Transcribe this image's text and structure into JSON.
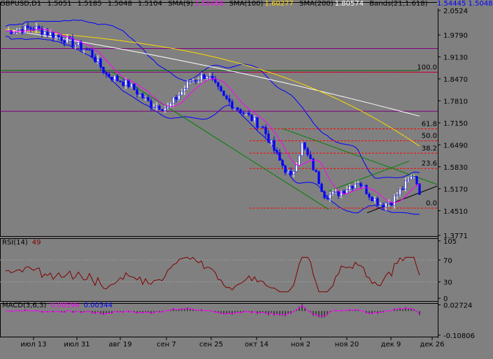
{
  "header": {
    "symbol": "GBPUSD,D1",
    "ohlc": [
      "1.5051",
      "1.5185",
      "1.5048",
      "1.5104"
    ],
    "sma9": {
      "label": "SMA(9)",
      "value": "1.51458"
    },
    "sma100": {
      "label": "SMA(100)",
      "value": "1.60277"
    },
    "sma200": {
      "label": "SMA(200)",
      "value": "1.80574"
    },
    "bands": {
      "label": "Bands(21,1.618)",
      "value1": "1.54445",
      "value2": "1.5048"
    }
  },
  "rsi": {
    "label": "RSI(14)",
    "value": "49",
    "levels": [
      "105",
      "70",
      "30",
      "0"
    ]
  },
  "macd": {
    "label": "MACD(3,6,3)",
    "value1": "0.00596",
    "value2": "0.00344",
    "levels": [
      "0.02724",
      "-0.10806"
    ]
  },
  "price_axis": [
    "2.0524",
    "1.9790",
    "1.9130",
    "1.8470",
    "1.7810",
    "1.7150",
    "1.6490",
    "1.5830",
    "1.5170",
    "1.4510",
    "1.3771"
  ],
  "time_axis": [
    "июл 13",
    "июл 31",
    "авг 19",
    "сен 7",
    "сен 25",
    "окт 14",
    "ноя 2",
    "ноя 20",
    "дек 9",
    "дек 26"
  ],
  "fibo": [
    "100.0",
    "61.8",
    "50.0",
    "38.2",
    "23.6",
    "0.0"
  ],
  "colors": {
    "background": "#808080",
    "bull_candle": "#ffffff",
    "bear_candle": "#0000ff",
    "sma9": "#ff00ff",
    "sma100": "#ffd700",
    "sma200": "#ffffff",
    "bands": "#0000ff",
    "hline": "#800080",
    "fibo": "#ff0000",
    "channel": "#008000"
  },
  "chart_data": {
    "type": "candlestick",
    "title": "GBPUSD,D1",
    "ylim": [
      1.3771,
      2.0524
    ],
    "x": [
      "июл 13",
      "июл 31",
      "авг 19",
      "сен 7",
      "сен 25",
      "окт 14",
      "ноя 2",
      "ноя 20",
      "дек 9",
      "дек 26"
    ],
    "close_series": [
      {
        "date": "июл 13",
        "value": 1.99
      },
      {
        "date": "июл 31",
        "value": 1.98
      },
      {
        "date": "авг 19",
        "value": 1.86
      },
      {
        "date": "сен 7",
        "value": 1.76
      },
      {
        "date": "сен 25",
        "value": 1.84
      },
      {
        "date": "окт 14",
        "value": 1.74
      },
      {
        "date": "ноя 2",
        "value": 1.58
      },
      {
        "date": "ноя 20",
        "value": 1.52
      },
      {
        "date": "дек 9",
        "value": 1.47
      },
      {
        "date": "дек 26",
        "value": 1.5104
      }
    ]
  }
}
